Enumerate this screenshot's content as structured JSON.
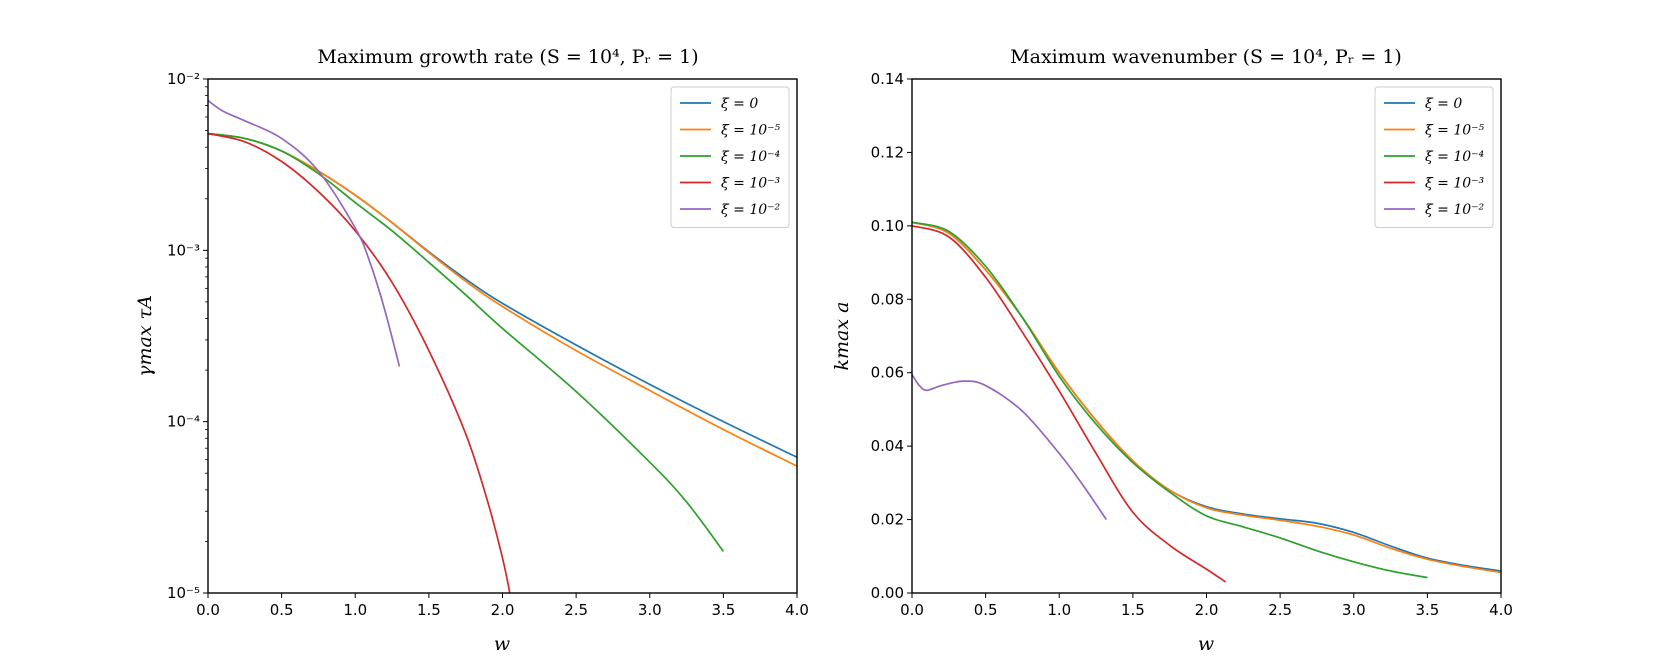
{
  "chart_data": [
    {
      "type": "line",
      "title": "Maximum growth rate (S = 10⁴, Pᵣ = 1)",
      "xlabel": "w",
      "ylabel": "γmax τA",
      "xlim": [
        0,
        4
      ],
      "ylim": [
        1e-05,
        0.01
      ],
      "yscale": "log",
      "xticks": [
        0,
        0.5,
        1,
        1.5,
        2,
        2.5,
        3,
        3.5,
        4
      ],
      "xtick_labels": [
        "0.0",
        "0.5",
        "1.0",
        "1.5",
        "2.0",
        "2.5",
        "3.0",
        "3.5",
        "4.0"
      ],
      "yticks": [
        1e-05,
        0.0001,
        0.001,
        0.01
      ],
      "ytick_labels": [
        "10⁻⁵",
        "10⁻⁴",
        "10⁻³",
        "10⁻²"
      ],
      "legend_position": "top-right",
      "series": [
        {
          "name": "ξ = 0",
          "color": "#1f77b4",
          "x": [
            0,
            0.25,
            0.5,
            0.75,
            1.0,
            1.25,
            1.5,
            1.75,
            2.0,
            2.5,
            3.0,
            3.5,
            4.0
          ],
          "y": [
            0.0048,
            0.0045,
            0.0038,
            0.0029,
            0.0021,
            0.00145,
            0.00098,
            0.00068,
            0.00049,
            0.00028,
            0.000165,
            0.0001,
            6.2e-05
          ]
        },
        {
          "name": "ξ = 10⁻⁵",
          "color": "#ff7f0e",
          "x": [
            0,
            0.25,
            0.5,
            0.75,
            1.0,
            1.25,
            1.5,
            1.75,
            2.0,
            2.5,
            3.0,
            3.5,
            4.0
          ],
          "y": [
            0.0048,
            0.0045,
            0.0038,
            0.0029,
            0.0021,
            0.00145,
            0.00097,
            0.00066,
            0.00047,
            0.00026,
            0.000152,
            9e-05,
            5.5e-05
          ]
        },
        {
          "name": "ξ = 10⁻⁴",
          "color": "#2ca02c",
          "x": [
            0,
            0.25,
            0.5,
            0.75,
            1.0,
            1.25,
            1.5,
            1.75,
            2.0,
            2.5,
            3.0,
            3.25,
            3.5
          ],
          "y": [
            0.0048,
            0.0045,
            0.0038,
            0.0028,
            0.0019,
            0.0013,
            0.00085,
            0.00055,
            0.00035,
            0.00015,
            5.8e-05,
            3.4e-05,
            1.75e-05
          ]
        },
        {
          "name": "ξ = 10⁻³",
          "color": "#d62728",
          "x": [
            0,
            0.25,
            0.5,
            0.75,
            1.0,
            1.25,
            1.5,
            1.75,
            1.9,
            2.0,
            2.05
          ],
          "y": [
            0.0048,
            0.0043,
            0.0033,
            0.0022,
            0.0013,
            0.00065,
            0.00026,
            8.5e-05,
            3.4e-05,
            1.6e-05,
            1e-05
          ]
        },
        {
          "name": "ξ = 10⁻²",
          "color": "#9467bd",
          "x": [
            0,
            0.1,
            0.25,
            0.5,
            0.75,
            1.0,
            1.1,
            1.2,
            1.3
          ],
          "y": [
            0.0075,
            0.0065,
            0.0057,
            0.0045,
            0.0029,
            0.00135,
            0.00085,
            0.00045,
            0.00021
          ]
        }
      ]
    },
    {
      "type": "line",
      "title": "Maximum wavenumber (S = 10⁴, Pᵣ = 1)",
      "xlabel": "w",
      "ylabel": "kmax a",
      "xlim": [
        0,
        4
      ],
      "ylim": [
        0,
        0.14
      ],
      "yscale": "linear",
      "xticks": [
        0,
        0.5,
        1,
        1.5,
        2,
        2.5,
        3,
        3.5,
        4
      ],
      "xtick_labels": [
        "0.0",
        "0.5",
        "1.0",
        "1.5",
        "2.0",
        "2.5",
        "3.0",
        "3.5",
        "4.0"
      ],
      "yticks": [
        0,
        0.02,
        0.04,
        0.06,
        0.08,
        0.1,
        0.12,
        0.14
      ],
      "ytick_labels": [
        "0.00",
        "0.02",
        "0.04",
        "0.06",
        "0.08",
        "0.10",
        "0.12",
        "0.14"
      ],
      "legend_position": "top-right",
      "series": [
        {
          "name": "ξ = 0",
          "color": "#1f77b4",
          "x": [
            0,
            0.25,
            0.5,
            0.75,
            1.0,
            1.25,
            1.5,
            1.75,
            2.0,
            2.25,
            2.5,
            2.75,
            3.0,
            3.25,
            3.5,
            3.75,
            4.0
          ],
          "y": [
            0.101,
            0.098,
            0.088,
            0.075,
            0.06,
            0.047,
            0.036,
            0.028,
            0.0235,
            0.0215,
            0.0202,
            0.019,
            0.0165,
            0.0128,
            0.0095,
            0.0075,
            0.006
          ]
        },
        {
          "name": "ξ = 10⁻⁵",
          "color": "#ff7f0e",
          "x": [
            0,
            0.25,
            0.5,
            0.75,
            1.0,
            1.25,
            1.5,
            1.75,
            2.0,
            2.25,
            2.5,
            2.75,
            3.0,
            3.25,
            3.5,
            3.75,
            4.0
          ],
          "y": [
            0.101,
            0.098,
            0.088,
            0.075,
            0.06,
            0.047,
            0.036,
            0.028,
            0.0232,
            0.0212,
            0.0198,
            0.0182,
            0.0158,
            0.0122,
            0.0092,
            0.0072,
            0.0056
          ]
        },
        {
          "name": "ξ = 10⁻⁴",
          "color": "#2ca02c",
          "x": [
            0,
            0.25,
            0.5,
            0.75,
            1.0,
            1.25,
            1.5,
            1.75,
            2.0,
            2.25,
            2.5,
            2.75,
            3.0,
            3.25,
            3.5
          ],
          "y": [
            0.101,
            0.0985,
            0.089,
            0.075,
            0.059,
            0.046,
            0.0355,
            0.0275,
            0.021,
            0.018,
            0.015,
            0.0115,
            0.0085,
            0.006,
            0.0042
          ]
        },
        {
          "name": "ξ = 10⁻³",
          "color": "#d62728",
          "x": [
            0,
            0.25,
            0.5,
            0.75,
            1.0,
            1.25,
            1.5,
            1.75,
            2.0,
            2.13
          ],
          "y": [
            0.1,
            0.097,
            0.086,
            0.071,
            0.055,
            0.038,
            0.022,
            0.013,
            0.0065,
            0.003
          ]
        },
        {
          "name": "ξ = 10⁻²",
          "color": "#9467bd",
          "x": [
            0,
            0.05,
            0.1,
            0.2,
            0.35,
            0.5,
            0.75,
            1.0,
            1.15,
            1.32
          ],
          "y": [
            0.0595,
            0.0565,
            0.0552,
            0.0565,
            0.0577,
            0.0565,
            0.0495,
            0.038,
            0.03,
            0.02
          ]
        }
      ]
    }
  ]
}
